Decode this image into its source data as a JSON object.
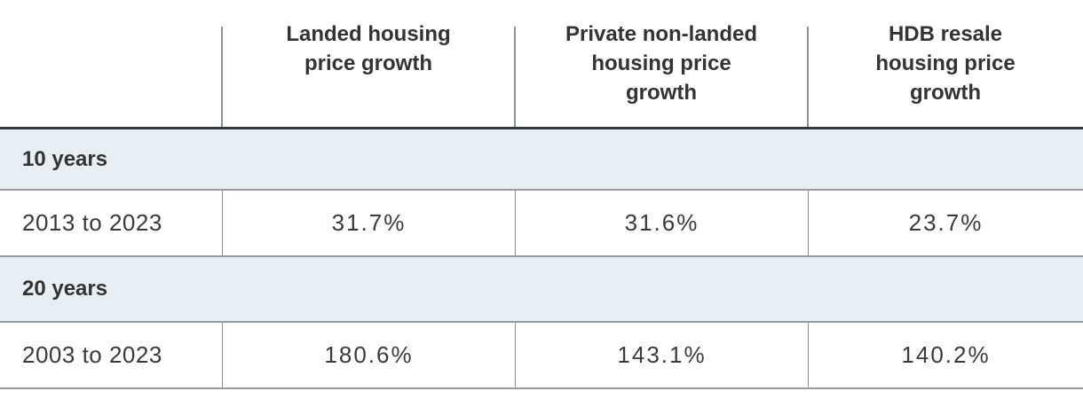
{
  "chart_data": {
    "type": "table",
    "columns": [
      "",
      "Landed housing price growth",
      "Private non-landed housing price growth",
      "HDB resale housing price growth"
    ],
    "sections": [
      {
        "label": "10 years",
        "rows": [
          {
            "period": "2013 to 2023",
            "values": [
              "31.7%",
              "31.6%",
              "23.7%"
            ]
          }
        ]
      },
      {
        "label": "20 years",
        "rows": [
          {
            "period": "2003 to 2023",
            "values": [
              "180.6%",
              "143.1%",
              "140.2%"
            ]
          }
        ]
      }
    ],
    "layout": {
      "grid": "horizontal rules between rows, vertical dividers between value columns",
      "section_band_color": "#e7eff5"
    }
  },
  "table": {
    "columns": [
      {
        "label": ""
      },
      {
        "label": "Landed housing\nprice growth"
      },
      {
        "label": "Private non-landed\nhousing price\ngrowth"
      },
      {
        "label": "HDB resale\nhousing price\ngrowth"
      }
    ],
    "sections": [
      {
        "header": "10 years",
        "rows": [
          {
            "label": "2013 to 2023",
            "values": [
              "31.7%",
              "31.6%",
              "23.7%"
            ]
          }
        ]
      },
      {
        "header": "20 years",
        "rows": [
          {
            "label": "2003 to 2023",
            "values": [
              "180.6%",
              "143.1%",
              "140.2%"
            ]
          }
        ]
      }
    ]
  },
  "colors": {
    "band_background": "#e7eff5",
    "dark_rule": "#33383b",
    "gray_rule": "#979ba0",
    "divider": "#8d9296",
    "text": "#333333"
  }
}
